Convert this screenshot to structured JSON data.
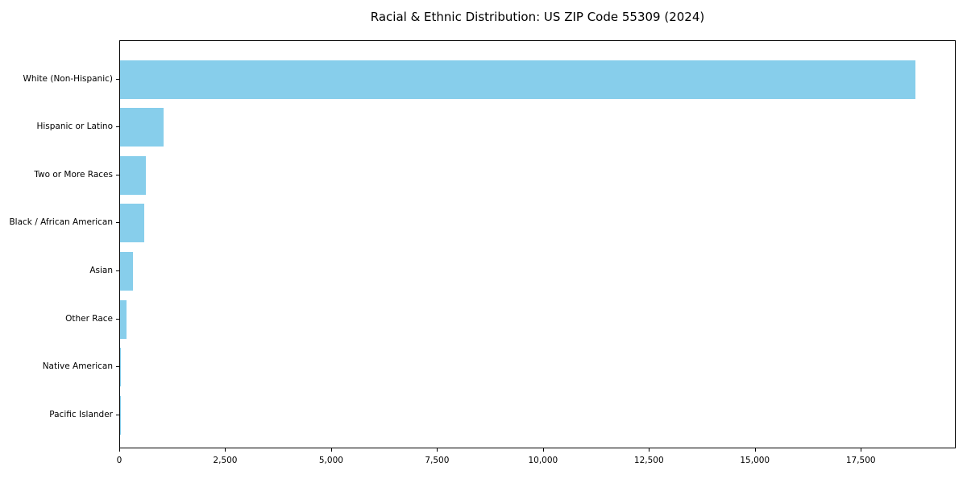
{
  "chart_data": {
    "type": "bar",
    "orientation": "horizontal",
    "title": "Racial & Ethnic Distribution: US ZIP Code 55309 (2024)",
    "categories": [
      "White (Non-Hispanic)",
      "Hispanic or Latino",
      "Two or More Races",
      "Black / African American",
      "Asian",
      "Other Race",
      "Native American",
      "Pacific Islander"
    ],
    "values": [
      18800,
      1030,
      615,
      565,
      300,
      155,
      20,
      3
    ],
    "xlabel": "",
    "ylabel": "",
    "xlim": [
      0,
      19740
    ],
    "x_ticks": [
      0,
      2500,
      5000,
      7500,
      10000,
      12500,
      15000,
      17500
    ],
    "x_tick_labels": [
      "0",
      "2,500",
      "5,000",
      "7,500",
      "10,000",
      "12,500",
      "15,000",
      "17,500"
    ],
    "bar_color": "#87CEEB",
    "axis_color": "#000000",
    "grid": false,
    "legend_position": "none"
  }
}
